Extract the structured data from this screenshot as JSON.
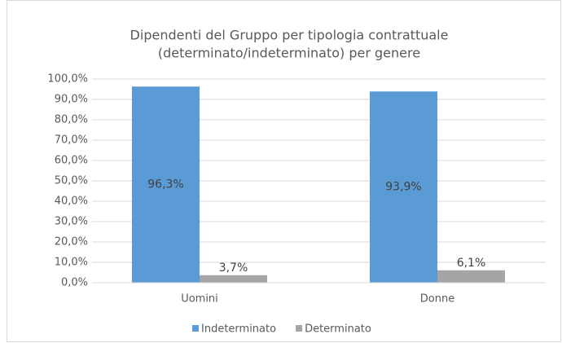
{
  "chart_data": {
    "type": "bar",
    "title": [
      "Dipendenti del Gruppo per tipologia contrattuale",
      "(determinato/indeterminato) per genere"
    ],
    "categories": [
      "Uomini",
      "Donne"
    ],
    "series": [
      {
        "name": "Indeterminato",
        "color": "#5b9bd5",
        "values": [
          96.3,
          93.9
        ],
        "value_labels": [
          "96,3%",
          "93,9%"
        ]
      },
      {
        "name": "Determinato",
        "color": "#a5a5a5",
        "values": [
          3.7,
          6.1
        ],
        "value_labels": [
          "3,7%",
          "6,1%"
        ]
      }
    ],
    "ylim": [
      0,
      100
    ],
    "yticks": [
      {
        "value": 0,
        "label": "0,0%"
      },
      {
        "value": 10,
        "label": "10,0%"
      },
      {
        "value": 20,
        "label": "20,0%"
      },
      {
        "value": 30,
        "label": "30,0%"
      },
      {
        "value": 40,
        "label": "40,0%"
      },
      {
        "value": 50,
        "label": "50,0%"
      },
      {
        "value": 60,
        "label": "60,0%"
      },
      {
        "value": 70,
        "label": "70,0%"
      },
      {
        "value": 80,
        "label": "80,0%"
      },
      {
        "value": 90,
        "label": "90,0%"
      },
      {
        "value": 100,
        "label": "100,0%"
      }
    ],
    "grid": true,
    "legend": "bottom"
  }
}
